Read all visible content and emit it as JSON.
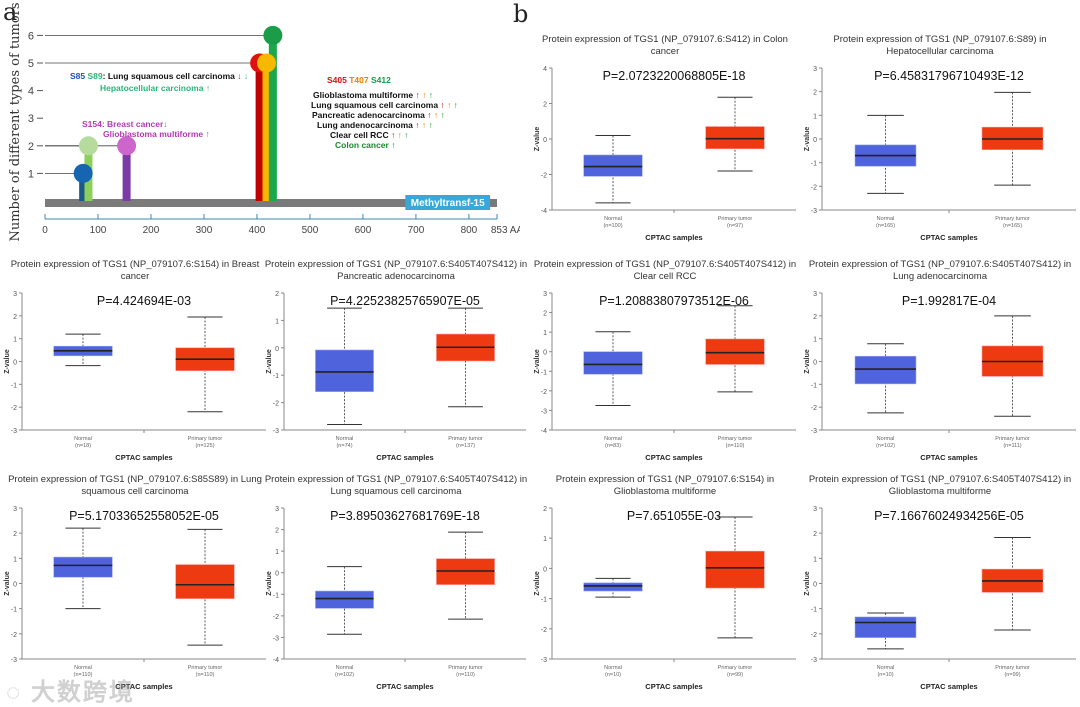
{
  "panel_labels": {
    "a": "a",
    "b": "b"
  },
  "watermark": "大数跨境",
  "chart_data": [
    {
      "type": "lollipop",
      "id": "a",
      "ylabel": "Number of different types of tumors",
      "xlabel_suffix": "AA",
      "xlim": [
        0,
        853
      ],
      "ylim": [
        0,
        6
      ],
      "xticks": [
        0,
        100,
        200,
        300,
        400,
        500,
        600,
        700,
        800,
        853
      ],
      "xtick_labels": [
        "0",
        "100",
        "200",
        "300",
        "400",
        "500",
        "600",
        "700",
        "800",
        "853 AA"
      ],
      "yticks": [
        "1",
        "2",
        "3",
        "4",
        "5",
        "6"
      ],
      "domain": {
        "name": "Methyltransf-15",
        "start": 680,
        "end": 840,
        "color": "#3aa7d9"
      },
      "sites": [
        {
          "site": "S85",
          "pos": 72,
          "count": 1,
          "head": "#1565b0",
          "stem": "#1a5a8a"
        },
        {
          "site": "S89",
          "pos": 82,
          "count": 2,
          "head": "#b5dc9c",
          "stem": "#8ccf5a"
        },
        {
          "site": "S154",
          "pos": 154,
          "count": 2,
          "head": "#cc66cc",
          "stem": "#7b3aa6"
        },
        {
          "site": "S405",
          "pos": 405,
          "count": 5,
          "head": "#e01010",
          "stem": "#c00000"
        },
        {
          "site": "T407",
          "pos": 418,
          "count": 5,
          "head": "#f6b800",
          "stem": "#f6b800"
        },
        {
          "site": "S412",
          "pos": 430,
          "count": 6,
          "head": "#1a9c48",
          "stem": "#1aa84a"
        }
      ],
      "annotations": [
        [
          {
            "t": "S85 ",
            "c": "#1f4fbf"
          },
          {
            "t": "S89",
            "c": "#2db37a"
          },
          {
            "t": ": Lung squamous cell carcinoma ",
            "c": "#111"
          },
          {
            "t": "↓ ",
            "c": "#1f4fbf"
          },
          {
            "t": "↓",
            "c": "#2db37a"
          }
        ],
        [
          {
            "t": "Hepatocellular carcinoma  ↑",
            "c": "#2db37a"
          }
        ],
        [
          {
            "t": "S154:  Breast cancer↓",
            "c": "#b23ab2"
          }
        ],
        [
          {
            "t": "Glioblastoma multiforme  ↑",
            "c": "#b23ab2"
          }
        ],
        [
          {
            "t": "S405 ",
            "c": "#e01010"
          },
          {
            "t": "T407 ",
            "c": "#f07a00"
          },
          {
            "t": "S412",
            "c": "#1a9c48"
          }
        ],
        [
          {
            "t": "Glioblastoma multiforme ",
            "c": "#111"
          },
          {
            "t": "↑ ",
            "c": "#b01010"
          },
          {
            "t": "↑ ",
            "c": "#f07a00"
          },
          {
            "t": "↑",
            "c": "#1a9c48"
          }
        ],
        [
          {
            "t": "Lung squamous cell carcinoma  ",
            "c": "#111"
          },
          {
            "t": "↑ ",
            "c": "#b01010"
          },
          {
            "t": "↑ ",
            "c": "#f07a00"
          },
          {
            "t": "↑",
            "c": "#1a9c48"
          }
        ],
        [
          {
            "t": "Pancreatic adenocarcinoma  ",
            "c": "#111"
          },
          {
            "t": "↑ ",
            "c": "#b01010"
          },
          {
            "t": "↑ ",
            "c": "#f07a00"
          },
          {
            "t": "↑",
            "c": "#1a9c48"
          }
        ],
        [
          {
            "t": "Lung andenocarcinoma  ",
            "c": "#111"
          },
          {
            "t": "↑ ",
            "c": "#b01010"
          },
          {
            "t": "↑ ",
            "c": "#f07a00"
          },
          {
            "t": "↑",
            "c": "#1a9c48"
          }
        ],
        [
          {
            "t": "Clear cell RCC ",
            "c": "#111"
          },
          {
            "t": "↑ ",
            "c": "#b01010"
          },
          {
            "t": "↑ ",
            "c": "#f07a00"
          },
          {
            "t": "↑",
            "c": "#1a9c48"
          }
        ],
        [
          {
            "t": "Colon cancer ↑",
            "c": "#1a8a30"
          }
        ]
      ]
    },
    {
      "type": "box",
      "title": [
        "Protein expression of TGS1 (NP_079107.6:S412) in Colon",
        "cancer"
      ],
      "p": "P=2.0723220068805E-18",
      "ylabel": "Z-value",
      "xlabel": "CPTAC samples",
      "ylim": [
        -4,
        4
      ],
      "yticks": [
        -4,
        -2,
        0,
        2,
        4
      ],
      "groups": [
        {
          "name": "Normal",
          "n": "(n=100)",
          "stats": [
            -3.6,
            -2.1,
            -1.55,
            -0.9,
            0.2
          ]
        },
        {
          "name": "Primary tumor",
          "n": "(n=97)",
          "stats": [
            -1.8,
            -0.55,
            0.02,
            0.7,
            2.35
          ]
        }
      ]
    },
    {
      "type": "box",
      "title": [
        "Protein expression of TGS1 (NP_079107.6:S89) in",
        "Hepatocellular carcinoma"
      ],
      "p": "P=6.45831796710493E-12",
      "ylabel": "Z-value",
      "xlabel": "CPTAC samples",
      "ylim": [
        -3,
        3
      ],
      "yticks": [
        -3,
        -2,
        -1,
        0,
        1,
        2,
        3
      ],
      "groups": [
        {
          "name": "Normal",
          "n": "(n=165)",
          "stats": [
            -2.3,
            -1.15,
            -0.7,
            -0.25,
            1.0
          ]
        },
        {
          "name": "Primary tumor",
          "n": "(n=165)",
          "stats": [
            -1.95,
            -0.45,
            0,
            0.5,
            1.97
          ]
        }
      ]
    },
    {
      "type": "box",
      "title": [
        "Protein expression of TGS1 (NP_079107.6:S154) in Breast",
        "cancer"
      ],
      "p": "P=4.424694E-03",
      "ylabel": "Z-value",
      "xlabel": "CPTAC samples",
      "ylim": [
        -3,
        3
      ],
      "yticks": [
        -3,
        -2,
        -1,
        0,
        1,
        2,
        3
      ],
      "groups": [
        {
          "name": "Normal",
          "n": "(n=18)",
          "stats": [
            -0.18,
            0.25,
            0.47,
            0.67,
            1.2
          ]
        },
        {
          "name": "Primary tumor",
          "n": "(n=125)",
          "stats": [
            -2.2,
            -0.4,
            0.1,
            0.6,
            1.95
          ]
        }
      ]
    },
    {
      "type": "box",
      "title": [
        "Protein expression of TGS1 (NP_079107.6:S405T407S412) in",
        "Pancreatic adenocarcinoma"
      ],
      "p": "P=4.22523825765907E-05",
      "ylabel": "Z-value",
      "xlabel": "CPTAC samples",
      "ylim": [
        -3,
        2
      ],
      "yticks": [
        -3,
        -2,
        -1,
        0,
        1,
        2
      ],
      "groups": [
        {
          "name": "Normal",
          "n": "(n=74)",
          "stats": [
            -2.8,
            -1.6,
            -0.88,
            -0.08,
            1.45
          ]
        },
        {
          "name": "Primary tumor",
          "n": "(n=137)",
          "stats": [
            -2.15,
            -0.48,
            0.02,
            0.5,
            1.45
          ]
        }
      ]
    },
    {
      "type": "box",
      "title": [
        "Protein expression of TGS1 (NP_079107.6:S405T407S412) in",
        "Clear cell RCC"
      ],
      "p": "P=1.20883807973512E-06",
      "ylabel": "Z-value",
      "xlabel": "CPTAC samples",
      "ylim": [
        -4,
        3
      ],
      "yticks": [
        -4,
        -3,
        -2,
        -1,
        0,
        1,
        2,
        3
      ],
      "groups": [
        {
          "name": "Normal",
          "n": "(n=83)",
          "stats": [
            -2.75,
            -1.15,
            -0.65,
            0,
            1.02
          ]
        },
        {
          "name": "Primary tumor",
          "n": "(n=110)",
          "stats": [
            -2.05,
            -0.65,
            -0.05,
            0.65,
            2.35
          ]
        }
      ]
    },
    {
      "type": "box",
      "title": [
        "Protein expression of TGS1 (NP_079107.6:S405T407S412) in",
        "Lung adenocarcinoma"
      ],
      "p": "P=1.992817E-04",
      "ylabel": "Z-value",
      "xlabel": "CPTAC samples",
      "ylim": [
        -3,
        3
      ],
      "yticks": [
        -3,
        -2,
        -1,
        0,
        1,
        2,
        3
      ],
      "groups": [
        {
          "name": "Normal",
          "n": "(n=102)",
          "stats": [
            -2.25,
            -0.98,
            -0.33,
            0.23,
            0.78
          ]
        },
        {
          "name": "Primary tumor",
          "n": "(n=111)",
          "stats": [
            -2.4,
            -0.65,
            0,
            0.68,
            2.0
          ]
        }
      ]
    },
    {
      "type": "box",
      "title": [
        "Protein expression of TGS1 (NP_079107.6:S85S89) in Lung",
        "squamous cell carcinoma"
      ],
      "p": "P=5.17033652558052E-05",
      "ylabel": "Z-value",
      "xlabel": "CPTAC samples",
      "ylim": [
        -3,
        3
      ],
      "yticks": [
        -3,
        -2,
        -1,
        0,
        1,
        2,
        3
      ],
      "groups": [
        {
          "name": "Normal",
          "n": "(n=110)",
          "stats": [
            -1.0,
            0.25,
            0.72,
            1.05,
            2.2
          ]
        },
        {
          "name": "Primary tumor",
          "n": "(n=110)",
          "stats": [
            -2.45,
            -0.6,
            -0.05,
            0.75,
            2.15
          ]
        }
      ]
    },
    {
      "type": "box",
      "title": [
        "Protein expression of TGS1 (NP_079107.6:S405T407S412) in",
        "Lung squamous cell carcinoma"
      ],
      "p": "P=3.89503627681769E-18",
      "ylabel": "Z-value",
      "xlabel": "CPTAC samples",
      "ylim": [
        -4,
        3
      ],
      "yticks": [
        -4,
        -3,
        -2,
        -1,
        0,
        1,
        2,
        3
      ],
      "groups": [
        {
          "name": "Normal",
          "n": "(n=102)",
          "stats": [
            -2.85,
            -1.65,
            -1.2,
            -0.85,
            0.28
          ]
        },
        {
          "name": "Primary tumor",
          "n": "(n=110)",
          "stats": [
            -2.15,
            -0.55,
            0.08,
            0.65,
            1.88
          ]
        }
      ]
    },
    {
      "type": "box",
      "title": [
        "Protein expression of TGS1 (NP_079107.6:S154) in",
        "Glioblastoma multiforme"
      ],
      "p": "P=7.651055E-03",
      "ylabel": "Z-value",
      "xlabel": "CPTAC samples",
      "ylim": [
        -3,
        2
      ],
      "yticks": [
        -3,
        -2,
        -1,
        0,
        1,
        2
      ],
      "groups": [
        {
          "name": "Normal",
          "n": "(n=10)",
          "stats": [
            -0.95,
            -0.75,
            -0.58,
            -0.48,
            -0.33
          ]
        },
        {
          "name": "Primary tumor",
          "n": "(n=99)",
          "stats": [
            -2.3,
            -0.65,
            0.02,
            0.57,
            1.7
          ]
        }
      ]
    },
    {
      "type": "box",
      "title": [
        "Protein expression of TGS1 (NP_079107.6:S405T407S412) in",
        "Glioblastoma multiforme"
      ],
      "p": "P=7.16676024934256E-05",
      "ylabel": "Z-value",
      "xlabel": "CPTAC samples",
      "ylim": [
        -3,
        3
      ],
      "yticks": [
        -3,
        -2,
        -1,
        0,
        1,
        2,
        3
      ],
      "groups": [
        {
          "name": "Normal",
          "n": "(n=10)",
          "stats": [
            -2.6,
            -2.15,
            -1.55,
            -1.33,
            -1.17
          ]
        },
        {
          "name": "Primary tumor",
          "n": "(n=99)",
          "stats": [
            -1.85,
            -0.35,
            0.1,
            0.57,
            1.83
          ]
        }
      ]
    }
  ],
  "colors": {
    "normal": "#4f63dd",
    "tumor": "#ee3a10",
    "backbone": "#7a7a7a"
  }
}
